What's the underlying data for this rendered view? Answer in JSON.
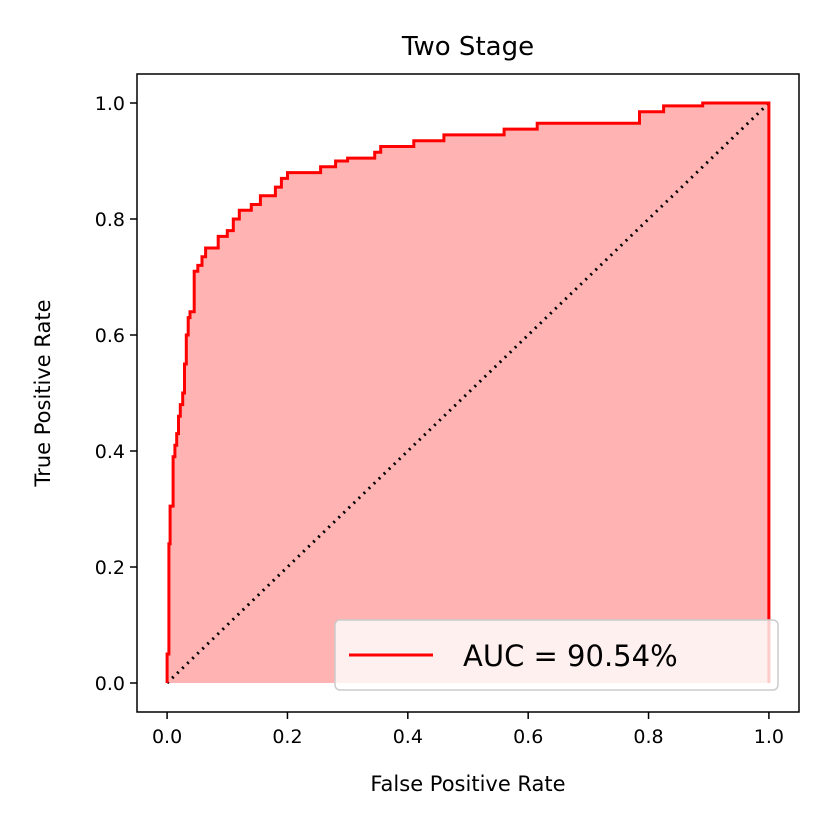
{
  "chart_data": {
    "type": "line",
    "title": "Two Stage",
    "xlabel": "False Positive Rate",
    "ylabel": "True Positive Rate",
    "xlim": [
      -0.05,
      1.05
    ],
    "ylim": [
      -0.05,
      1.05
    ],
    "xticks": [
      "0.0",
      "0.2",
      "0.4",
      "0.6",
      "0.8",
      "1.0"
    ],
    "yticks": [
      "0.0",
      "0.2",
      "0.4",
      "0.6",
      "0.8",
      "1.0"
    ],
    "grid": false,
    "legend": {
      "placement": "lower-right",
      "entries": [
        "AUC = 90.54%"
      ]
    },
    "colors": {
      "roc": "#ff0000",
      "fill": "#ffb3b3",
      "diagonal": "#000000"
    },
    "series": [
      {
        "name": "AUC = 90.54%",
        "style": "step-line-filled",
        "points": [
          [
            0.0,
            0.0
          ],
          [
            0.0,
            0.05
          ],
          [
            0.003,
            0.05
          ],
          [
            0.003,
            0.24
          ],
          [
            0.005,
            0.24
          ],
          [
            0.005,
            0.305
          ],
          [
            0.01,
            0.305
          ],
          [
            0.01,
            0.39
          ],
          [
            0.013,
            0.39
          ],
          [
            0.013,
            0.41
          ],
          [
            0.016,
            0.41
          ],
          [
            0.016,
            0.43
          ],
          [
            0.019,
            0.43
          ],
          [
            0.019,
            0.46
          ],
          [
            0.022,
            0.46
          ],
          [
            0.022,
            0.48
          ],
          [
            0.026,
            0.48
          ],
          [
            0.026,
            0.5
          ],
          [
            0.029,
            0.5
          ],
          [
            0.029,
            0.55
          ],
          [
            0.032,
            0.55
          ],
          [
            0.032,
            0.6
          ],
          [
            0.035,
            0.6
          ],
          [
            0.035,
            0.63
          ],
          [
            0.038,
            0.63
          ],
          [
            0.038,
            0.64
          ],
          [
            0.045,
            0.64
          ],
          [
            0.045,
            0.71
          ],
          [
            0.051,
            0.71
          ],
          [
            0.051,
            0.72
          ],
          [
            0.058,
            0.72
          ],
          [
            0.058,
            0.735
          ],
          [
            0.064,
            0.735
          ],
          [
            0.064,
            0.75
          ],
          [
            0.085,
            0.75
          ],
          [
            0.085,
            0.77
          ],
          [
            0.1,
            0.77
          ],
          [
            0.1,
            0.78
          ],
          [
            0.11,
            0.78
          ],
          [
            0.11,
            0.8
          ],
          [
            0.12,
            0.8
          ],
          [
            0.12,
            0.815
          ],
          [
            0.14,
            0.815
          ],
          [
            0.14,
            0.825
          ],
          [
            0.155,
            0.825
          ],
          [
            0.155,
            0.84
          ],
          [
            0.18,
            0.84
          ],
          [
            0.18,
            0.855
          ],
          [
            0.19,
            0.855
          ],
          [
            0.19,
            0.87
          ],
          [
            0.2,
            0.87
          ],
          [
            0.2,
            0.88
          ],
          [
            0.255,
            0.88
          ],
          [
            0.255,
            0.89
          ],
          [
            0.28,
            0.89
          ],
          [
            0.28,
            0.9
          ],
          [
            0.3,
            0.9
          ],
          [
            0.3,
            0.905
          ],
          [
            0.345,
            0.905
          ],
          [
            0.345,
            0.915
          ],
          [
            0.355,
            0.915
          ],
          [
            0.355,
            0.925
          ],
          [
            0.41,
            0.925
          ],
          [
            0.41,
            0.935
          ],
          [
            0.46,
            0.935
          ],
          [
            0.46,
            0.945
          ],
          [
            0.56,
            0.945
          ],
          [
            0.56,
            0.955
          ],
          [
            0.615,
            0.955
          ],
          [
            0.615,
            0.965
          ],
          [
            0.785,
            0.965
          ],
          [
            0.785,
            0.985
          ],
          [
            0.825,
            0.985
          ],
          [
            0.825,
            0.995
          ],
          [
            0.89,
            0.995
          ],
          [
            0.89,
            1.0
          ],
          [
            1.0,
            1.0
          ],
          [
            1.0,
            0.0
          ]
        ]
      }
    ],
    "reference_line": {
      "style": "dotted",
      "points": [
        [
          0.0,
          0.0
        ],
        [
          1.0,
          1.0
        ]
      ]
    }
  }
}
